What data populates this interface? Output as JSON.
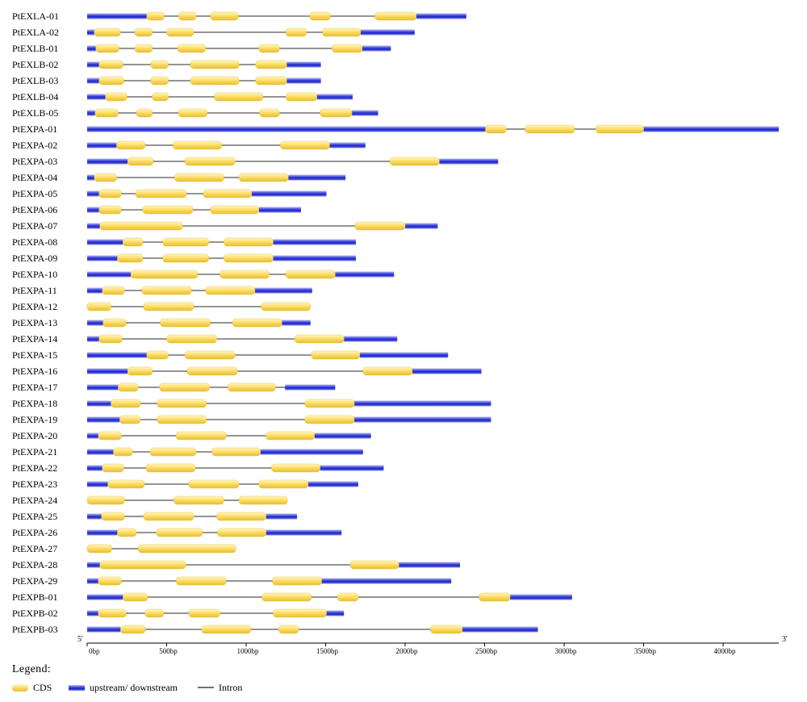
{
  "axis": {
    "max_bp": 4350,
    "ticks": [
      {
        "value": 0,
        "label": "0bp"
      },
      {
        "value": 500,
        "label": "500bp"
      },
      {
        "value": 1000,
        "label": "1000bp"
      },
      {
        "value": 1500,
        "label": "1500bp"
      },
      {
        "value": 2000,
        "label": "2000bp"
      },
      {
        "value": 2500,
        "label": "2500bp"
      },
      {
        "value": 3000,
        "label": "3000bp"
      },
      {
        "value": 3500,
        "label": "3500bp"
      },
      {
        "value": 4000,
        "label": "4000bp"
      }
    ],
    "five_prime_label": "5'",
    "three_prime_label": "3'"
  },
  "legend": {
    "title": "Legend:",
    "cds_label": "CDS",
    "utr_label": "upstream/ downstream",
    "intron_label": "Intron"
  },
  "colors": {
    "cds": "#f5cf4c",
    "utr": "#1a22c9",
    "intron": "#707070"
  },
  "chart_data": {
    "type": "gene_structure",
    "genes": [
      {
        "name": "PtEXLA-01",
        "length": 2385,
        "utr": [
          [
            0,
            375
          ],
          [
            2070,
            2385
          ]
        ],
        "cds": [
          [
            375,
            485
          ],
          [
            575,
            685
          ],
          [
            775,
            950
          ],
          [
            1400,
            1530
          ],
          [
            1810,
            2070
          ]
        ]
      },
      {
        "name": "PtEXLA-02",
        "length": 2060,
        "utr": [
          [
            0,
            45
          ],
          [
            1720,
            2060
          ]
        ],
        "cds": [
          [
            45,
            210
          ],
          [
            300,
            410
          ],
          [
            500,
            670
          ],
          [
            1250,
            1380
          ],
          [
            1480,
            1720
          ]
        ]
      },
      {
        "name": "PtEXLB-01",
        "length": 1910,
        "utr": [
          [
            0,
            55
          ],
          [
            1730,
            1910
          ]
        ],
        "cds": [
          [
            55,
            200
          ],
          [
            300,
            410
          ],
          [
            570,
            745
          ],
          [
            1080,
            1210
          ],
          [
            1540,
            1730
          ]
        ]
      },
      {
        "name": "PtEXLB-02",
        "length": 1470,
        "utr": [
          [
            0,
            75
          ],
          [
            1255,
            1470
          ]
        ],
        "cds": [
          [
            75,
            225
          ],
          [
            400,
            510
          ],
          [
            650,
            955
          ],
          [
            1060,
            1255
          ]
        ]
      },
      {
        "name": "PtEXLB-03",
        "length": 1470,
        "utr": [
          [
            0,
            75
          ],
          [
            1255,
            1470
          ]
        ],
        "cds": [
          [
            75,
            230
          ],
          [
            400,
            510
          ],
          [
            650,
            955
          ],
          [
            1060,
            1255
          ]
        ]
      },
      {
        "name": "PtEXLB-04",
        "length": 1670,
        "utr": [
          [
            0,
            115
          ],
          [
            1445,
            1670
          ]
        ],
        "cds": [
          [
            115,
            250
          ],
          [
            410,
            510
          ],
          [
            800,
            1105
          ],
          [
            1250,
            1445
          ]
        ]
      },
      {
        "name": "PtEXLB-05",
        "length": 1830,
        "utr": [
          [
            0,
            50
          ],
          [
            1665,
            1830
          ]
        ],
        "cds": [
          [
            50,
            195
          ],
          [
            310,
            410
          ],
          [
            575,
            755
          ],
          [
            1085,
            1210
          ],
          [
            1465,
            1665
          ]
        ]
      },
      {
        "name": "PtEXPA-01",
        "length": 4350,
        "utr": [
          [
            0,
            2505
          ],
          [
            3500,
            4350
          ]
        ],
        "cds": [
          [
            2505,
            2635
          ],
          [
            2755,
            3065
          ],
          [
            3200,
            3500
          ]
        ]
      },
      {
        "name": "PtEXPA-02",
        "length": 1750,
        "utr": [
          [
            0,
            185
          ],
          [
            1525,
            1750
          ]
        ],
        "cds": [
          [
            185,
            365
          ],
          [
            540,
            845
          ],
          [
            1215,
            1525
          ]
        ]
      },
      {
        "name": "PtEXPA-03",
        "length": 2585,
        "utr": [
          [
            0,
            255
          ],
          [
            2215,
            2585
          ]
        ],
        "cds": [
          [
            255,
            415
          ],
          [
            615,
            930
          ],
          [
            1905,
            2215
          ]
        ]
      },
      {
        "name": "PtEXPA-04",
        "length": 1625,
        "utr": [
          [
            0,
            45
          ],
          [
            1265,
            1625
          ]
        ],
        "cds": [
          [
            45,
            185
          ],
          [
            550,
            860
          ],
          [
            955,
            1265
          ]
        ]
      },
      {
        "name": "PtEXPA-05",
        "length": 1505,
        "utr": [
          [
            0,
            75
          ],
          [
            1035,
            1505
          ]
        ],
        "cds": [
          [
            75,
            215
          ],
          [
            305,
            625
          ],
          [
            730,
            1035
          ]
        ]
      },
      {
        "name": "PtEXPA-06",
        "length": 1345,
        "utr": [
          [
            0,
            75
          ],
          [
            1080,
            1345
          ]
        ],
        "cds": [
          [
            75,
            215
          ],
          [
            350,
            665
          ],
          [
            775,
            1080
          ]
        ]
      },
      {
        "name": "PtEXPA-07",
        "length": 2205,
        "utr": [
          [
            0,
            80
          ],
          [
            2000,
            2205
          ]
        ],
        "cds": [
          [
            80,
            600
          ],
          [
            1685,
            2000
          ]
        ]
      },
      {
        "name": "PtEXPA-08",
        "length": 1690,
        "utr": [
          [
            0,
            225
          ],
          [
            1170,
            1690
          ]
        ],
        "cds": [
          [
            225,
            350
          ],
          [
            475,
            765
          ],
          [
            860,
            1170
          ]
        ]
      },
      {
        "name": "PtEXPA-09",
        "length": 1690,
        "utr": [
          [
            0,
            190
          ],
          [
            1170,
            1690
          ]
        ],
        "cds": [
          [
            190,
            350
          ],
          [
            475,
            765
          ],
          [
            860,
            1170
          ]
        ]
      },
      {
        "name": "PtEXPA-10",
        "length": 1930,
        "utr": [
          [
            0,
            275
          ],
          [
            1560,
            1930
          ]
        ],
        "cds": [
          [
            275,
            695
          ],
          [
            835,
            1145
          ],
          [
            1250,
            1560
          ]
        ]
      },
      {
        "name": "PtEXPA-11",
        "length": 1415,
        "utr": [
          [
            0,
            95
          ],
          [
            1055,
            1415
          ]
        ],
        "cds": [
          [
            95,
            235
          ],
          [
            345,
            655
          ],
          [
            745,
            1055
          ]
        ]
      },
      {
        "name": "PtEXPA-12",
        "length": 1405,
        "utr": [],
        "cds": [
          [
            0,
            150
          ],
          [
            355,
            670
          ],
          [
            1095,
            1405
          ]
        ]
      },
      {
        "name": "PtEXPA-13",
        "length": 1405,
        "utr": [
          [
            0,
            100
          ],
          [
            1225,
            1405
          ]
        ],
        "cds": [
          [
            100,
            245
          ],
          [
            460,
            775
          ],
          [
            915,
            1225
          ]
        ]
      },
      {
        "name": "PtEXPA-14",
        "length": 1950,
        "utr": [
          [
            0,
            75
          ],
          [
            1615,
            1950
          ]
        ],
        "cds": [
          [
            75,
            220
          ],
          [
            500,
            815
          ],
          [
            1305,
            1615
          ]
        ]
      },
      {
        "name": "PtEXPA-15",
        "length": 2270,
        "utr": [
          [
            0,
            375
          ],
          [
            1715,
            2270
          ]
        ],
        "cds": [
          [
            375,
            510
          ],
          [
            615,
            930
          ],
          [
            1410,
            1715
          ]
        ]
      },
      {
        "name": "PtEXPA-16",
        "length": 2480,
        "utr": [
          [
            0,
            255
          ],
          [
            2045,
            2480
          ]
        ],
        "cds": [
          [
            255,
            410
          ],
          [
            630,
            945
          ],
          [
            1735,
            2045
          ]
        ]
      },
      {
        "name": "PtEXPA-17",
        "length": 1560,
        "utr": [
          [
            0,
            195
          ],
          [
            1245,
            1560
          ]
        ],
        "cds": [
          [
            195,
            320
          ],
          [
            455,
            770
          ],
          [
            885,
            1185
          ]
        ]
      },
      {
        "name": "PtEXPA-18",
        "length": 2540,
        "utr": [
          [
            0,
            150
          ],
          [
            1680,
            2540
          ]
        ],
        "cds": [
          [
            150,
            335
          ],
          [
            440,
            750
          ],
          [
            1370,
            1680
          ]
        ]
      },
      {
        "name": "PtEXPA-19",
        "length": 2540,
        "utr": [
          [
            0,
            205
          ],
          [
            1680,
            2540
          ]
        ],
        "cds": [
          [
            205,
            335
          ],
          [
            440,
            750
          ],
          [
            1370,
            1680
          ]
        ]
      },
      {
        "name": "PtEXPA-20",
        "length": 1785,
        "utr": [
          [
            0,
            70
          ],
          [
            1430,
            1785
          ]
        ],
        "cds": [
          [
            70,
            215
          ],
          [
            560,
            875
          ],
          [
            1125,
            1430
          ]
        ]
      },
      {
        "name": "PtEXPA-21",
        "length": 1735,
        "utr": [
          [
            0,
            165
          ],
          [
            1090,
            1735
          ]
        ],
        "cds": [
          [
            165,
            285
          ],
          [
            395,
            685
          ],
          [
            785,
            1090
          ]
        ]
      },
      {
        "name": "PtEXPA-22",
        "length": 1865,
        "utr": [
          [
            0,
            95
          ],
          [
            1465,
            1865
          ]
        ],
        "cds": [
          [
            95,
            230
          ],
          [
            370,
            680
          ],
          [
            1160,
            1465
          ]
        ]
      },
      {
        "name": "PtEXPA-23",
        "length": 1705,
        "utr": [
          [
            0,
            130
          ],
          [
            1390,
            1705
          ]
        ],
        "cds": [
          [
            130,
            360
          ],
          [
            640,
            955
          ],
          [
            1080,
            1390
          ]
        ]
      },
      {
        "name": "PtEXPA-24",
        "length": 1260,
        "utr": [],
        "cds": [
          [
            0,
            235
          ],
          [
            545,
            860
          ],
          [
            955,
            1260
          ]
        ]
      },
      {
        "name": "PtEXPA-25",
        "length": 1320,
        "utr": [
          [
            0,
            90
          ],
          [
            1125,
            1320
          ]
        ],
        "cds": [
          [
            90,
            235
          ],
          [
            355,
            670
          ],
          [
            815,
            1125
          ]
        ]
      },
      {
        "name": "PtEXPA-26",
        "length": 1600,
        "utr": [
          [
            0,
            190
          ],
          [
            1125,
            1600
          ]
        ],
        "cds": [
          [
            190,
            310
          ],
          [
            435,
            725
          ],
          [
            820,
            1125
          ]
        ]
      },
      {
        "name": "PtEXPA-27",
        "length": 935,
        "utr": [],
        "cds": [
          [
            0,
            155
          ],
          [
            320,
            935
          ]
        ]
      },
      {
        "name": "PtEXPA-28",
        "length": 2345,
        "utr": [
          [
            0,
            80
          ],
          [
            1960,
            2345
          ]
        ],
        "cds": [
          [
            80,
            620
          ],
          [
            1655,
            1960
          ]
        ]
      },
      {
        "name": "PtEXPA-29",
        "length": 2290,
        "utr": [
          [
            0,
            70
          ],
          [
            1475,
            2290
          ]
        ],
        "cds": [
          [
            70,
            215
          ],
          [
            560,
            875
          ],
          [
            1165,
            1475
          ]
        ]
      },
      {
        "name": "PtEXPB-01",
        "length": 3050,
        "utr": [
          [
            0,
            225
          ],
          [
            2660,
            3050
          ]
        ],
        "cds": [
          [
            225,
            380
          ],
          [
            1100,
            1410
          ],
          [
            1575,
            1705
          ],
          [
            2465,
            2660
          ]
        ]
      },
      {
        "name": "PtEXPB-02",
        "length": 1615,
        "utr": [
          [
            0,
            70
          ],
          [
            1505,
            1615
          ]
        ],
        "cds": [
          [
            70,
            245
          ],
          [
            365,
            480
          ],
          [
            640,
            835
          ],
          [
            1170,
            1505
          ]
        ]
      },
      {
        "name": "PtEXPB-03",
        "length": 2835,
        "utr": [
          [
            0,
            210
          ],
          [
            2360,
            2835
          ]
        ],
        "cds": [
          [
            210,
            365
          ],
          [
            720,
            1030
          ],
          [
            1205,
            1330
          ],
          [
            2160,
            2360
          ]
        ]
      }
    ]
  }
}
